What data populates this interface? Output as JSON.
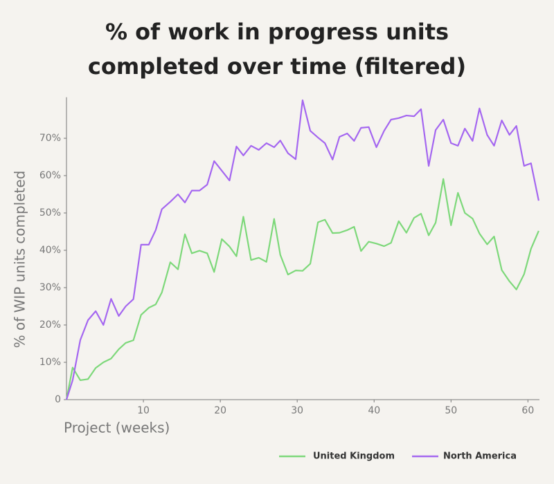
{
  "chart_data": {
    "type": "line",
    "title": "% of work in progress units",
    "subtitle": "completed over time (filtered)",
    "xlabel": "Project (weeks)",
    "ylabel": "% of WIP units completed",
    "x": [
      0,
      0.8,
      1.8,
      2.8,
      3.8,
      4.8,
      5.8,
      6.8,
      7.7,
      8.7,
      9.7,
      10.7,
      11.6,
      12.4,
      13.5,
      14.5,
      15.4,
      16.3,
      17.3,
      18.3,
      19.2,
      20.2,
      21.2,
      22.1,
      23,
      24,
      25,
      26,
      27,
      27.8,
      28.8,
      29.8,
      30.7,
      31.7,
      32.7,
      33.6,
      34.6,
      35.5,
      36.5,
      37.4,
      38.3,
      39.3,
      40.3,
      41.3,
      42.2,
      43.2,
      44.2,
      45.2,
      46.1,
      47.1,
      48,
      49,
      50,
      50.9,
      51.8,
      52.8,
      53.7,
      54.7,
      55.6,
      56.6,
      57.6,
      58.5,
      59.5,
      60.4,
      61.4
    ],
    "series": [
      {
        "name": "United Kingdom",
        "color": "#7dd87a",
        "values": [
          0,
          8.6,
          5.2,
          5.5,
          8.5,
          10,
          11,
          13.5,
          15.2,
          15.9,
          22.7,
          24.6,
          25.5,
          28.7,
          36.8,
          34.9,
          44.3,
          39.2,
          39.9,
          39.2,
          34.2,
          43,
          41,
          38.4,
          49,
          37.4,
          38,
          36.9,
          48.4,
          38.8,
          33.5,
          34.6,
          34.5,
          36.4,
          47.5,
          48.2,
          44.6,
          44.7,
          45.4,
          46.3,
          39.8,
          42.3,
          41.8,
          41.1,
          42,
          47.8,
          44.7,
          48.7,
          49.8,
          44,
          47.4,
          59.1,
          46.7,
          55.4,
          50,
          48.5,
          44.5,
          41.6,
          43.7,
          34.7,
          31.7,
          29.5,
          33.6,
          40.4,
          45.2
        ]
      },
      {
        "name": "North America",
        "color": "#a466f0",
        "values": [
          0,
          5.2,
          16,
          21.3,
          23.7,
          20,
          27,
          22.4,
          25,
          26.9,
          41.5,
          41.5,
          45.4,
          51,
          53,
          55,
          52.8,
          56,
          56,
          57.6,
          63.9,
          61.3,
          58.7,
          67.8,
          65.4,
          68,
          66.9,
          68.7,
          67.6,
          69.4,
          66,
          64.4,
          80.2,
          72,
          70.2,
          68.7,
          64.3,
          70.4,
          71.3,
          69.3,
          72.8,
          73,
          67.6,
          72,
          75,
          75.4,
          76.1,
          75.9,
          77.8,
          62.6,
          72.2,
          75,
          68.7,
          68,
          72.6,
          69.3,
          78,
          70.9,
          68,
          74.8,
          70.9,
          73.3,
          62.6,
          63.3,
          53.3
        ]
      }
    ],
    "xlim": [
      0,
      61.5
    ],
    "xticks": [
      10,
      20,
      30,
      40,
      50,
      60
    ],
    "ylim": [
      0,
      81
    ],
    "yticks": [
      0,
      {
        "value": 10,
        "label": "10%"
      },
      {
        "value": 20,
        "label": "20%"
      },
      {
        "value": 30,
        "label": "30%"
      },
      {
        "value": 40,
        "label": "40%"
      },
      {
        "value": 50,
        "label": "50%"
      },
      {
        "value": 60,
        "label": "60%"
      },
      {
        "value": 70,
        "label": "70%"
      }
    ],
    "legend": "bottom",
    "grid": false
  }
}
